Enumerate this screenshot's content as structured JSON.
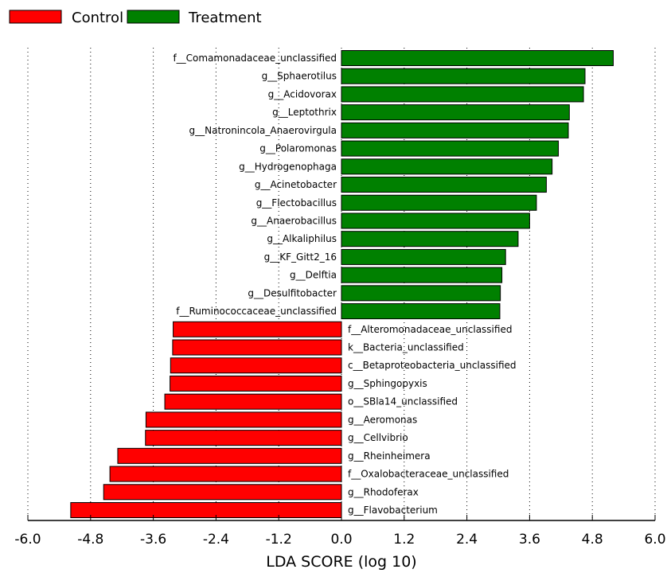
{
  "chart_data": {
    "type": "bar",
    "orientation": "horizontal",
    "xlabel": "LDA SCORE (log 10)",
    "xlim": [
      -6.0,
      6.0
    ],
    "xticks": [
      "-6.0",
      "-4.8",
      "-3.6",
      "-2.4",
      "-1.2",
      "0.0",
      "1.2",
      "2.4",
      "3.6",
      "4.8",
      "6.0"
    ],
    "grid": "vertical dotted",
    "legend": {
      "placement": "top-left",
      "entries": [
        {
          "name": "Control",
          "color": "#ff0000"
        },
        {
          "name": "Treatment",
          "color": "#008000"
        }
      ]
    },
    "bars": [
      {
        "label": "f__Comamonadaceae_unclassified",
        "value": 5.2,
        "group": "Treatment"
      },
      {
        "label": "g__Sphaerotilus",
        "value": 4.66,
        "group": "Treatment"
      },
      {
        "label": "g__Acidovorax",
        "value": 4.63,
        "group": "Treatment"
      },
      {
        "label": "g__Leptothrix",
        "value": 4.36,
        "group": "Treatment"
      },
      {
        "label": "g__Natronincola_Anaerovirgula",
        "value": 4.34,
        "group": "Treatment"
      },
      {
        "label": "g__Polaromonas",
        "value": 4.15,
        "group": "Treatment"
      },
      {
        "label": "g__Hydrogenophaga",
        "value": 4.03,
        "group": "Treatment"
      },
      {
        "label": "g__Acinetobacter",
        "value": 3.92,
        "group": "Treatment"
      },
      {
        "label": "g__Flectobacillus",
        "value": 3.73,
        "group": "Treatment"
      },
      {
        "label": "g__Anaerobacillus",
        "value": 3.6,
        "group": "Treatment"
      },
      {
        "label": "g__Alkaliphilus",
        "value": 3.38,
        "group": "Treatment"
      },
      {
        "label": "g__KF_Gitt2_16",
        "value": 3.14,
        "group": "Treatment"
      },
      {
        "label": "g__Delftia",
        "value": 3.07,
        "group": "Treatment"
      },
      {
        "label": "g__Desulfitobacter",
        "value": 3.04,
        "group": "Treatment"
      },
      {
        "label": "f__Ruminococcaceae_unclassified",
        "value": 3.03,
        "group": "Treatment"
      },
      {
        "label": "f__Alteromonadaceae_unclassified",
        "value": -3.22,
        "group": "Control"
      },
      {
        "label": "k__Bacteria_unclassified",
        "value": -3.23,
        "group": "Control"
      },
      {
        "label": "c__Betaproteobacteria_unclassified",
        "value": -3.27,
        "group": "Control"
      },
      {
        "label": "g__Sphingopyxis",
        "value": -3.28,
        "group": "Control"
      },
      {
        "label": "o__SBla14_unclassified",
        "value": -3.38,
        "group": "Control"
      },
      {
        "label": "g__Aeromonas",
        "value": -3.74,
        "group": "Control"
      },
      {
        "label": "g__Cellvibrio",
        "value": -3.75,
        "group": "Control"
      },
      {
        "label": "g__Rheinheimera",
        "value": -4.28,
        "group": "Control"
      },
      {
        "label": "f__Oxalobacteraceae_unclassified",
        "value": -4.43,
        "group": "Control"
      },
      {
        "label": "g__Rhodoferax",
        "value": -4.55,
        "group": "Control"
      },
      {
        "label": "g__Flavobacterium",
        "value": -5.18,
        "group": "Control"
      }
    ]
  }
}
